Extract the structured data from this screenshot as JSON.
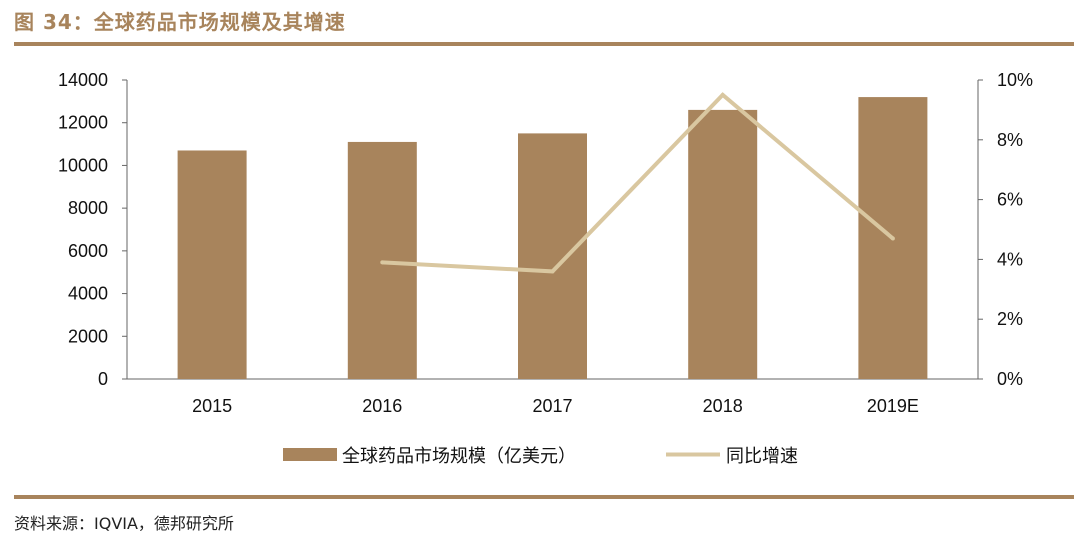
{
  "figure_label": "图 34：全球药品市场规模及其增速",
  "source": "资料来源：IQVIA，德邦研究所",
  "colors": {
    "accent": "#a8845c",
    "bar": "#a8845c",
    "line": "#d9c7a0",
    "axis": "#666666",
    "text": "#111111"
  },
  "chart_data": {
    "type": "bar",
    "categories": [
      "2015",
      "2016",
      "2017",
      "2018",
      "2019E"
    ],
    "series": [
      {
        "name": "全球药品市场规模（亿美元）",
        "type": "bar",
        "axis": "left",
        "values": [
          10700,
          11100,
          11500,
          12600,
          13200
        ]
      },
      {
        "name": "同比增速",
        "type": "line",
        "axis": "right",
        "values": [
          null,
          3.9,
          3.6,
          9.5,
          4.7
        ]
      }
    ],
    "y_left": {
      "min": 0,
      "max": 14000,
      "ticks": [
        0,
        2000,
        4000,
        6000,
        8000,
        10000,
        12000,
        14000
      ],
      "tick_labels": [
        "0",
        "2000",
        "4000",
        "6000",
        "8000",
        "10000",
        "12000",
        "14000"
      ]
    },
    "y_right": {
      "min": 0,
      "max": 10,
      "unit": "%",
      "ticks": [
        0,
        2,
        4,
        6,
        8,
        10
      ],
      "tick_labels": [
        "0%",
        "2%",
        "4%",
        "6%",
        "8%",
        "10%"
      ]
    },
    "grid": false,
    "legend_position": "bottom"
  }
}
